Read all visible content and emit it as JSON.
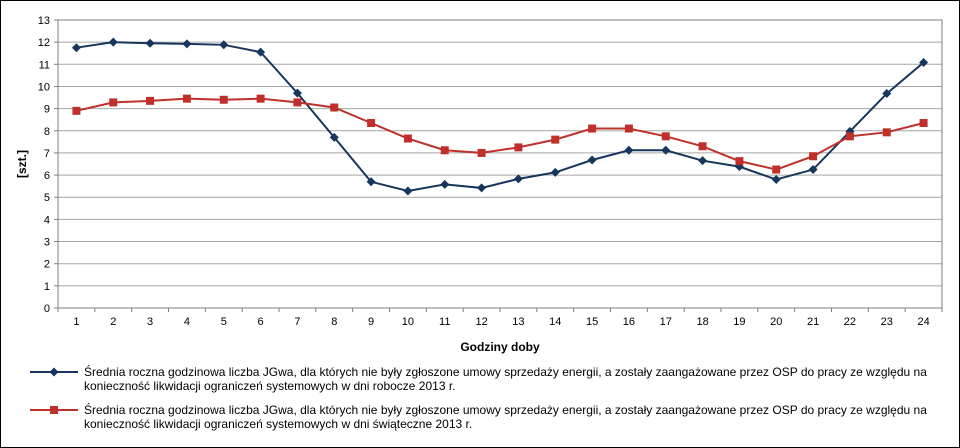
{
  "colors": {
    "series1": "#17365D",
    "series2": "#C0302B",
    "grid": "#A6A6A6"
  },
  "chart_data": {
    "type": "line",
    "xlabel": "Godziny doby",
    "ylabel": "[szt.]",
    "ylim": [
      0,
      13
    ],
    "yticks": [
      "0",
      "1",
      "2",
      "3",
      "4",
      "5",
      "6",
      "7",
      "8",
      "9",
      "10",
      "11",
      "12",
      "13"
    ],
    "grid": "horizontal",
    "legend_position": "bottom",
    "categories": [
      "1",
      "2",
      "3",
      "4",
      "5",
      "6",
      "7",
      "8",
      "9",
      "10",
      "11",
      "12",
      "13",
      "14",
      "15",
      "16",
      "17",
      "18",
      "19",
      "20",
      "21",
      "22",
      "23",
      "24"
    ],
    "series": [
      {
        "name": "Średnia roczna godzinowa liczba JGwa, dla których nie były zgłoszone umowy sprzedaży energii, a zostały zaangażowane przez OSP do pracy ze względu na konieczność likwidacji ograniczeń systemowych w dni robocze 2013 r.",
        "name_lines": [
          "Średnia roczna godzinowa liczba JGwa, dla których nie były zgłoszone umowy sprzedaży energii, a zostały zaangażowane przez OSP do pracy ze względu na",
          "konieczność likwidacji ograniczeń systemowych w dni robocze 2013 r."
        ],
        "marker": "diamond",
        "values": [
          11.75,
          12.0,
          11.95,
          11.92,
          11.88,
          11.55,
          9.7,
          7.7,
          5.7,
          5.28,
          5.58,
          5.42,
          5.83,
          6.12,
          6.68,
          7.12,
          7.12,
          6.65,
          6.38,
          5.8,
          6.25,
          7.97,
          9.68,
          11.08
        ]
      },
      {
        "name": "Średnia roczna godzinowa liczba JGwa, dla których nie były zgłoszone umowy sprzedaży energii, a zostały zaangażowane przez OSP do pracy ze względu na konieczność likwidacji ograniczeń systemowych w dni świąteczne 2013 r.",
        "name_lines": [
          "Średnia roczna godzinowa liczba JGwa, dla których nie były zgłoszone umowy sprzedaży energii, a zostały zaangażowane przez OSP do pracy ze względu na",
          "konieczność likwidacji ograniczeń systemowych w dni świąteczne 2013 r."
        ],
        "marker": "square",
        "values": [
          8.9,
          9.28,
          9.35,
          9.45,
          9.4,
          9.45,
          9.28,
          9.05,
          8.35,
          7.65,
          7.12,
          7.0,
          7.25,
          7.6,
          8.1,
          8.1,
          7.75,
          7.3,
          6.63,
          6.25,
          6.85,
          7.75,
          7.93,
          8.35
        ]
      }
    ]
  }
}
